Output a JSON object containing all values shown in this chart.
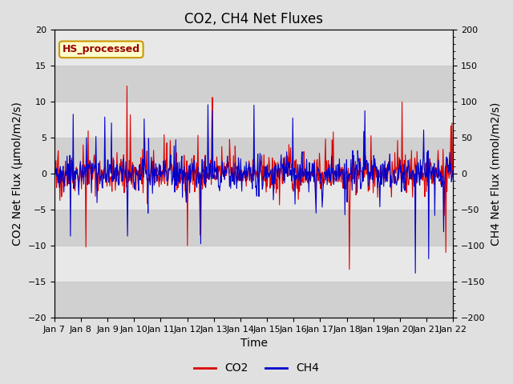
{
  "title": "CO2, CH4 Net Fluxes",
  "xlabel": "Time",
  "ylabel_left": "CO2 Net Flux (μmol/m2/s)",
  "ylabel_right": "CH4 Net Flux (nmol/m2/s)",
  "ylim_left": [
    -20,
    20
  ],
  "ylim_right": [
    -200,
    200
  ],
  "yticks_left": [
    -20,
    -15,
    -10,
    -5,
    0,
    5,
    10,
    15,
    20
  ],
  "yticks_right": [
    -200,
    -150,
    -100,
    -50,
    0,
    50,
    100,
    150,
    200
  ],
  "xtick_labels": [
    "Jan 7",
    "Jan 8",
    "Jan 9",
    "Jan 10",
    "Jan 11",
    "Jan 12",
    "Jan 13",
    "Jan 14",
    "Jan 15",
    "Jan 16",
    "Jan 17",
    "Jan 18",
    "Jan 19",
    "Jan 20",
    "Jan 21",
    "Jan 22"
  ],
  "legend_labels": [
    "CO2",
    "CH4"
  ],
  "co2_color": "#dd0000",
  "ch4_color": "#0000cc",
  "co2_linewidth": 0.8,
  "ch4_linewidth": 0.8,
  "annotation_text": "HS_processed",
  "annotation_color": "#990000",
  "annotation_bg": "#ffffcc",
  "annotation_border": "#cc9900",
  "bg_color": "#e0e0e0",
  "plot_bg_light": "#e8e8e8",
  "plot_bg_dark": "#d0d0d0",
  "grid_color": "#cccccc",
  "title_fontsize": 12,
  "axis_label_fontsize": 10,
  "tick_fontsize": 8,
  "seed": 42,
  "n_points": 720,
  "co2_base_scale": 1.2,
  "co2_spike_scale": 6.0,
  "ch4_base_scale": 12.0,
  "ch4_spike_scale": 60.0
}
